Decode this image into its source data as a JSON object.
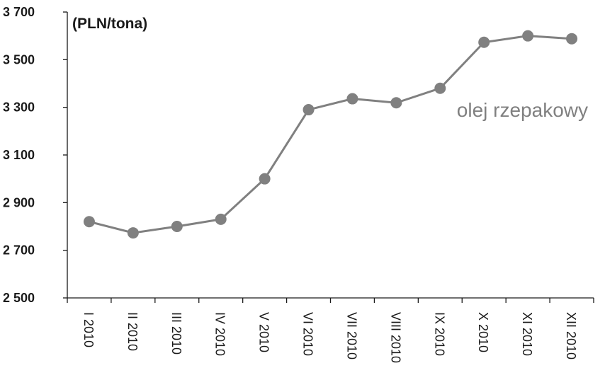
{
  "chart_data": {
    "type": "line",
    "unit_label": "(PLN/tona)",
    "categories": [
      "I 2010",
      "II 2010",
      "III 2010",
      "IV 2010",
      "V 2010",
      "VI 2010",
      "VII 2010",
      "VIII 2010",
      "IX 2010",
      "X 2010",
      "XI 2010",
      "XII 2010"
    ],
    "series": [
      {
        "name": "olej rzepakowy",
        "values": [
          2820,
          2773,
          2800,
          2830,
          3000,
          3290,
          3336,
          3319,
          3380,
          3573,
          3600,
          3588
        ],
        "color": "#808080"
      }
    ],
    "ylim": [
      2500,
      3700
    ],
    "yticks": [
      2500,
      2700,
      2900,
      3100,
      3300,
      3500,
      3700
    ],
    "ytick_labels": [
      "2 500",
      "2 700",
      "2 900",
      "3 100",
      "3 300",
      "3 500",
      "3 700"
    ],
    "grid": false,
    "legend": "inline near line end"
  }
}
